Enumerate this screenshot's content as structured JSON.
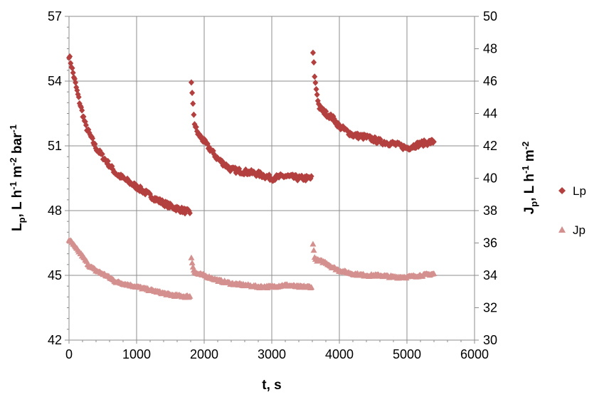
{
  "chart_data": {
    "type": "scatter",
    "xlabel": "t, s",
    "ylabel_left": {
      "main": "L",
      "sub": "p",
      "rest": ", L h",
      "sup1": "-1",
      "mid": " m",
      "sup2": "-2",
      "tail": " bar",
      "sup3": "-1"
    },
    "ylabel_right": {
      "main": "J",
      "sub": "p",
      "rest": ", L h",
      "sup1": "-1",
      "mid": " m",
      "sup2": "-2"
    },
    "xlim": [
      0,
      6000
    ],
    "ylim_left": [
      42,
      57
    ],
    "ylim_right": [
      30,
      50
    ],
    "x_ticks": [
      "0",
      "1000",
      "2000",
      "3000",
      "4000",
      "5000",
      "6000"
    ],
    "y_left_ticks": [
      "42",
      "45",
      "48",
      "51",
      "54",
      "57"
    ],
    "y_right_ticks": [
      "30",
      "32",
      "34",
      "36",
      "38",
      "40",
      "42",
      "44",
      "46",
      "48",
      "50"
    ],
    "grid": true,
    "legend_position": "right",
    "series": [
      {
        "name": "Lp",
        "axis": "left",
        "marker": "diamond",
        "color": "#b3403f",
        "segments": [
          {
            "t": [
              0,
              30,
              80,
              150,
              250,
              400,
              550,
              700,
              900,
              1100,
              1300,
              1500,
              1700,
              1790
            ],
            "y": [
              55.2,
              54.8,
              54.1,
              53.1,
              51.9,
              50.9,
              50.3,
              49.7,
              49.3,
              48.9,
              48.5,
              48.2,
              48.0,
              47.9
            ]
          },
          {
            "t": [
              1810,
              1830,
              1860,
              1900,
              2000,
              2200,
              2400,
              2600,
              2800,
              3000,
              3200,
              3400,
              3590
            ],
            "y": [
              54.0,
              53.0,
              52.0,
              51.6,
              51.2,
              50.4,
              49.9,
              49.8,
              49.7,
              49.5,
              49.6,
              49.5,
              49.5
            ]
          },
          {
            "t": [
              3610,
              3640,
              3700,
              3800,
              3900,
              4000,
              4200,
              4400,
              4600,
              4800,
              5000,
              5200,
              5400
            ],
            "y": [
              55.3,
              54.0,
              52.8,
              52.5,
              52.3,
              51.9,
              51.5,
              51.4,
              51.2,
              51.1,
              50.9,
              51.1,
              51.2
            ]
          }
        ]
      },
      {
        "name": "Jp",
        "axis": "right",
        "marker": "triangle",
        "color": "#d4908e",
        "segments": [
          {
            "t": [
              0,
              50,
              100,
              200,
              300,
              400,
              550,
              700,
              900,
              1100,
              1300,
              1500,
              1700,
              1790
            ],
            "y": [
              36.2,
              36.0,
              35.7,
              35.2,
              34.6,
              34.3,
              34.0,
              33.6,
              33.4,
              33.2,
              33.0,
              32.8,
              32.7,
              32.7
            ]
          },
          {
            "t": [
              1810,
              1830,
              1860,
              1900,
              2000,
              2200,
              2400,
              2600,
              2800,
              3000,
              3200,
              3400,
              3590
            ],
            "y": [
              35.1,
              34.6,
              34.2,
              34.1,
              34.0,
              33.7,
              33.5,
              33.4,
              33.3,
              33.3,
              33.4,
              33.3,
              33.3
            ]
          },
          {
            "t": [
              3610,
              3640,
              3700,
              3800,
              3900,
              4000,
              4200,
              4400,
              4600,
              4800,
              5000,
              5200,
              5400
            ],
            "y": [
              35.9,
              35.0,
              34.9,
              34.8,
              34.5,
              34.3,
              34.1,
              34.0,
              34.0,
              33.9,
              33.9,
              34.0,
              34.1
            ]
          }
        ]
      }
    ]
  }
}
